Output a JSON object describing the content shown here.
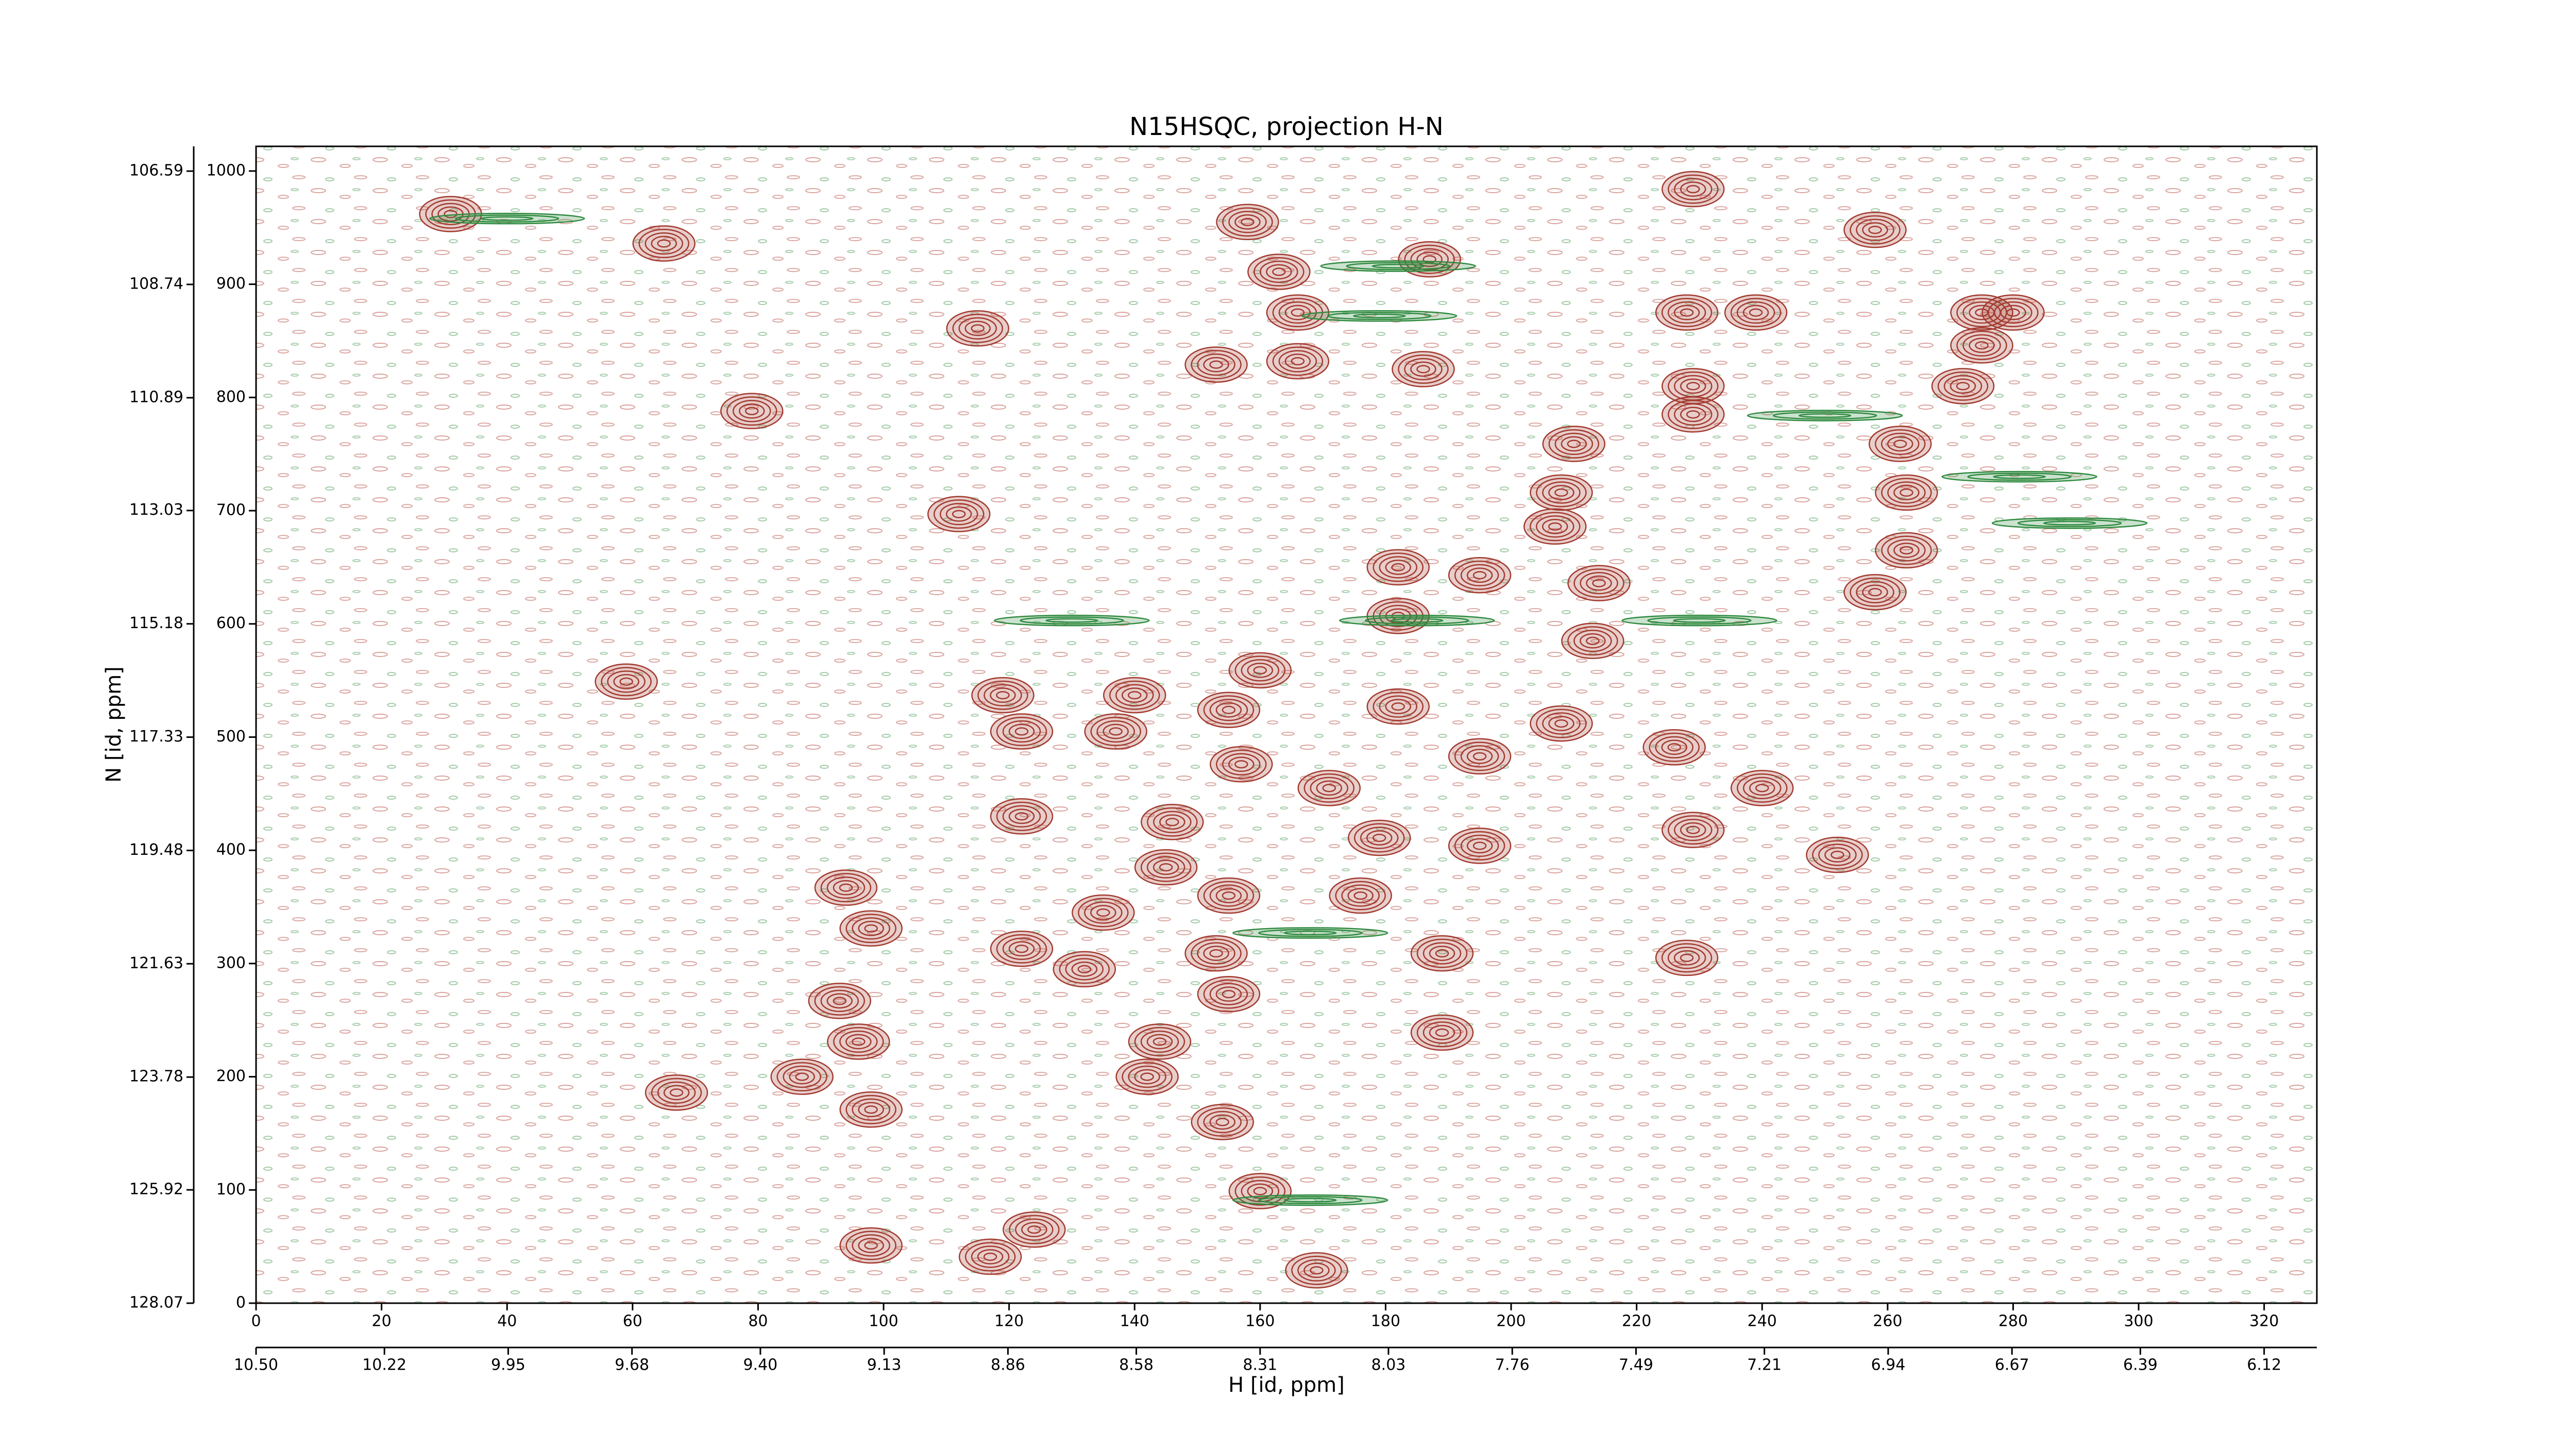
{
  "chart_data": {
    "type": "contour",
    "title": "N15HSQC, projection H-N",
    "xlabel": "H [id, ppm]",
    "ylabel": "N [id, ppm]",
    "xlim": [
      0,
      328.4
    ],
    "xticks": [
      0,
      20,
      40,
      60,
      80,
      100,
      120,
      140,
      160,
      180,
      200,
      220,
      240,
      260,
      280,
      300,
      320
    ],
    "x2lim": [
      10.5,
      6.005
    ],
    "x2ticks": [
      {
        "value": 10.5,
        "label": "10.50"
      },
      10.22,
      9.95,
      9.68,
      {
        "value": 9.4,
        "label": "9.40"
      },
      9.13,
      8.86,
      8.58,
      8.31,
      8.03,
      7.76,
      7.49,
      7.21,
      6.94,
      6.67,
      6.39,
      6.12
    ],
    "ylim": [
      0,
      1021.8
    ],
    "yticks": [
      0,
      100,
      200,
      300,
      400,
      500,
      600,
      700,
      800,
      900,
      1000
    ],
    "y2lim": [
      128.07,
      106.12
    ],
    "y2ticks": [
      128.07,
      125.92,
      123.78,
      121.63,
      119.48,
      117.33,
      115.18,
      113.03,
      110.89,
      108.74,
      106.59
    ],
    "positive_color": "#a23b30",
    "negative_color": "#2f8a3f",
    "peaks": [
      {
        "x": 31,
        "y": 962
      },
      {
        "x": 65,
        "y": 936
      },
      {
        "x": 79,
        "y": 788
      },
      {
        "x": 112,
        "y": 697
      },
      {
        "x": 59,
        "y": 549
      },
      {
        "x": 115,
        "y": 861
      },
      {
        "x": 158,
        "y": 955
      },
      {
        "x": 163,
        "y": 911
      },
      {
        "x": 166,
        "y": 875
      },
      {
        "x": 166,
        "y": 832
      },
      {
        "x": 153,
        "y": 829
      },
      {
        "x": 186,
        "y": 825
      },
      {
        "x": 187,
        "y": 922
      },
      {
        "x": 228,
        "y": 875
      },
      {
        "x": 239,
        "y": 875
      },
      {
        "x": 229,
        "y": 810
      },
      {
        "x": 229,
        "y": 785
      },
      {
        "x": 258,
        "y": 948
      },
      {
        "x": 229,
        "y": 984
      },
      {
        "x": 275,
        "y": 875
      },
      {
        "x": 280,
        "y": 875
      },
      {
        "x": 275,
        "y": 846
      },
      {
        "x": 272,
        "y": 810
      },
      {
        "x": 262,
        "y": 759
      },
      {
        "x": 210,
        "y": 759
      },
      {
        "x": 208,
        "y": 716
      },
      {
        "x": 207,
        "y": 686
      },
      {
        "x": 263,
        "y": 716
      },
      {
        "x": 263,
        "y": 665
      },
      {
        "x": 182,
        "y": 650
      },
      {
        "x": 195,
        "y": 643
      },
      {
        "x": 214,
        "y": 636
      },
      {
        "x": 258,
        "y": 628
      },
      {
        "x": 182,
        "y": 607
      },
      {
        "x": 213,
        "y": 585
      },
      {
        "x": 160,
        "y": 559
      },
      {
        "x": 119,
        "y": 537
      },
      {
        "x": 140,
        "y": 537
      },
      {
        "x": 122,
        "y": 505
      },
      {
        "x": 137,
        "y": 505
      },
      {
        "x": 155,
        "y": 524
      },
      {
        "x": 182,
        "y": 527
      },
      {
        "x": 208,
        "y": 512
      },
      {
        "x": 195,
        "y": 483
      },
      {
        "x": 226,
        "y": 491
      },
      {
        "x": 240,
        "y": 455
      },
      {
        "x": 157,
        "y": 476
      },
      {
        "x": 171,
        "y": 455
      },
      {
        "x": 122,
        "y": 430
      },
      {
        "x": 146,
        "y": 425
      },
      {
        "x": 179,
        "y": 411
      },
      {
        "x": 195,
        "y": 404
      },
      {
        "x": 229,
        "y": 418
      },
      {
        "x": 252,
        "y": 396
      },
      {
        "x": 145,
        "y": 385
      },
      {
        "x": 94,
        "y": 367
      },
      {
        "x": 176,
        "y": 360
      },
      {
        "x": 155,
        "y": 360
      },
      {
        "x": 135,
        "y": 345
      },
      {
        "x": 98,
        "y": 331
      },
      {
        "x": 122,
        "y": 313
      },
      {
        "x": 132,
        "y": 295
      },
      {
        "x": 153,
        "y": 309
      },
      {
        "x": 189,
        "y": 309
      },
      {
        "x": 228,
        "y": 305
      },
      {
        "x": 155,
        "y": 273
      },
      {
        "x": 93,
        "y": 267
      },
      {
        "x": 144,
        "y": 231
      },
      {
        "x": 189,
        "y": 239
      },
      {
        "x": 96,
        "y": 231
      },
      {
        "x": 87,
        "y": 200
      },
      {
        "x": 142,
        "y": 200
      },
      {
        "x": 67,
        "y": 186
      },
      {
        "x": 98,
        "y": 171
      },
      {
        "x": 154,
        "y": 160
      },
      {
        "x": 160,
        "y": 99
      },
      {
        "x": 98,
        "y": 51
      },
      {
        "x": 124,
        "y": 65
      },
      {
        "x": 117,
        "y": 41
      },
      {
        "x": 169,
        "y": 29
      }
    ],
    "negative_peaks": [
      {
        "x": 185,
        "y": 603
      },
      {
        "x": 130,
        "y": 603
      },
      {
        "x": 230,
        "y": 603
      },
      {
        "x": 281,
        "y": 730
      },
      {
        "x": 289,
        "y": 689
      },
      {
        "x": 179,
        "y": 872
      },
      {
        "x": 182,
        "y": 916
      },
      {
        "x": 250,
        "y": 784
      },
      {
        "x": 168,
        "y": 327
      },
      {
        "x": 40,
        "y": 958
      },
      {
        "x": 168,
        "y": 91
      }
    ]
  }
}
